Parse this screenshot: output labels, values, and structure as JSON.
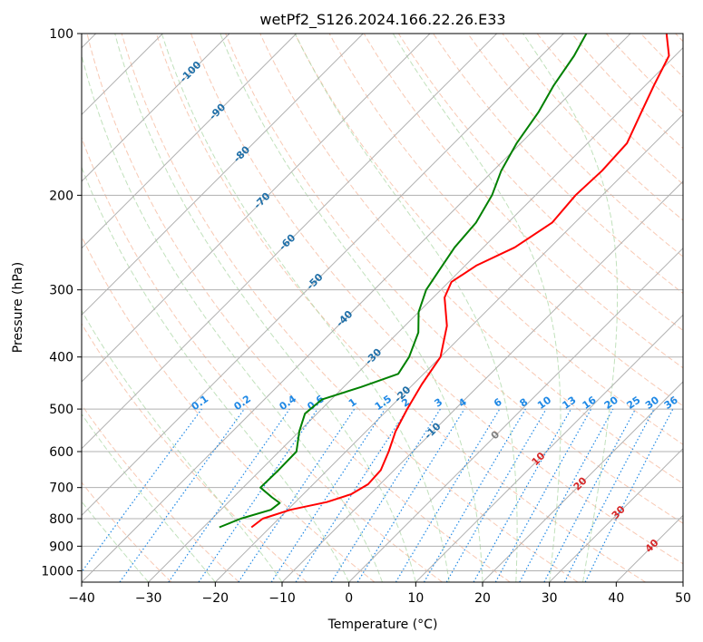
{
  "chart_data": {
    "type": "line",
    "title": "wetPf2_S126.2024.166.22.26.E33",
    "xlabel": "Temperature (°C)",
    "ylabel": "Pressure (hPa)",
    "xlim": [
      -40,
      50
    ],
    "ylim": [
      1050,
      100
    ],
    "y_scale": "log",
    "skew": true,
    "x_ticks": [
      -40,
      -30,
      -20,
      -10,
      0,
      10,
      20,
      30,
      40,
      50
    ],
    "x_tick_labels": [
      "−40",
      "−30",
      "−20",
      "−10",
      "0",
      "10",
      "20",
      "30",
      "40",
      "50"
    ],
    "y_ticks": [
      100,
      200,
      300,
      400,
      500,
      600,
      700,
      800,
      900,
      1000
    ],
    "y_tick_labels": [
      "100",
      "200",
      "300",
      "400",
      "500",
      "600",
      "700",
      "800",
      "900",
      "1000"
    ],
    "grid": true,
    "series": [
      {
        "name": "",
        "color": "#ff0000",
        "points": [
          {
            "p": 830,
            "t": -22.8
          },
          {
            "p": 800,
            "t": -22.4
          },
          {
            "p": 770,
            "t": -19.6
          },
          {
            "p": 745,
            "t": -15.3
          },
          {
            "p": 720,
            "t": -12.8
          },
          {
            "p": 690,
            "t": -11.8
          },
          {
            "p": 650,
            "t": -12.0
          },
          {
            "p": 600,
            "t": -13.6
          },
          {
            "p": 550,
            "t": -15.6
          },
          {
            "p": 500,
            "t": -17.2
          },
          {
            "p": 450,
            "t": -18.7
          },
          {
            "p": 400,
            "t": -20.0
          },
          {
            "p": 350,
            "t": -23.7
          },
          {
            "p": 310,
            "t": -28.3
          },
          {
            "p": 290,
            "t": -29.6
          },
          {
            "p": 270,
            "t": -28.3
          },
          {
            "p": 250,
            "t": -25.3
          },
          {
            "p": 225,
            "t": -23.4
          },
          {
            "p": 200,
            "t": -24.0
          },
          {
            "p": 180,
            "t": -23.7
          },
          {
            "p": 160,
            "t": -24.1
          },
          {
            "p": 140,
            "t": -26.6
          },
          {
            "p": 125,
            "t": -28.7
          },
          {
            "p": 110,
            "t": -30.9
          },
          {
            "p": 100,
            "t": -34.6
          }
        ]
      },
      {
        "name": "",
        "color": "#008000",
        "points": [
          {
            "p": 830,
            "t": -27.6
          },
          {
            "p": 800,
            "t": -25.7
          },
          {
            "p": 770,
            "t": -22.5
          },
          {
            "p": 748,
            "t": -22.2
          },
          {
            "p": 730,
            "t": -24.2
          },
          {
            "p": 700,
            "t": -27.4
          },
          {
            "p": 650,
            "t": -27.3
          },
          {
            "p": 600,
            "t": -27.4
          },
          {
            "p": 550,
            "t": -30.0
          },
          {
            "p": 510,
            "t": -31.8
          },
          {
            "p": 480,
            "t": -31.4
          },
          {
            "p": 455,
            "t": -27.4
          },
          {
            "p": 430,
            "t": -23.8
          },
          {
            "p": 400,
            "t": -24.7
          },
          {
            "p": 360,
            "t": -27.0
          },
          {
            "p": 330,
            "t": -30.0
          },
          {
            "p": 300,
            "t": -32.2
          },
          {
            "p": 280,
            "t": -33.0
          },
          {
            "p": 250,
            "t": -34.3
          },
          {
            "p": 225,
            "t": -34.8
          },
          {
            "p": 200,
            "t": -36.5
          },
          {
            "p": 180,
            "t": -38.8
          },
          {
            "p": 160,
            "t": -40.6
          },
          {
            "p": 140,
            "t": -42.0
          },
          {
            "p": 125,
            "t": -43.7
          },
          {
            "p": 110,
            "t": -45.1
          },
          {
            "p": 100,
            "t": -46.6
          }
        ]
      }
    ],
    "isotherm_labels": [
      "-100",
      "-90",
      "-80",
      "-70",
      "-60",
      "-50",
      "-40",
      "-30",
      "-20",
      "-10",
      "0",
      "10",
      "20",
      "30",
      "40"
    ],
    "mixing_ratio_labels": [
      "0.1",
      "0.2",
      "0.4",
      "0.6",
      "1",
      "1.5",
      "2",
      "3",
      "4",
      "6",
      "8",
      "10",
      "13",
      "16",
      "20",
      "25",
      "30",
      "36"
    ],
    "colors": {
      "background": "#ffffff",
      "grid": "#b0b0b0",
      "dry_adiabat": "#f4a582",
      "moist_adiabat": "#a6d49f",
      "mixing_ratio": "#1e88e5",
      "isotherm_label_cold": "#1f6fa8",
      "isotherm_label_warm": "#d62728",
      "zero_label": "#808080",
      "border": "#000000"
    }
  }
}
